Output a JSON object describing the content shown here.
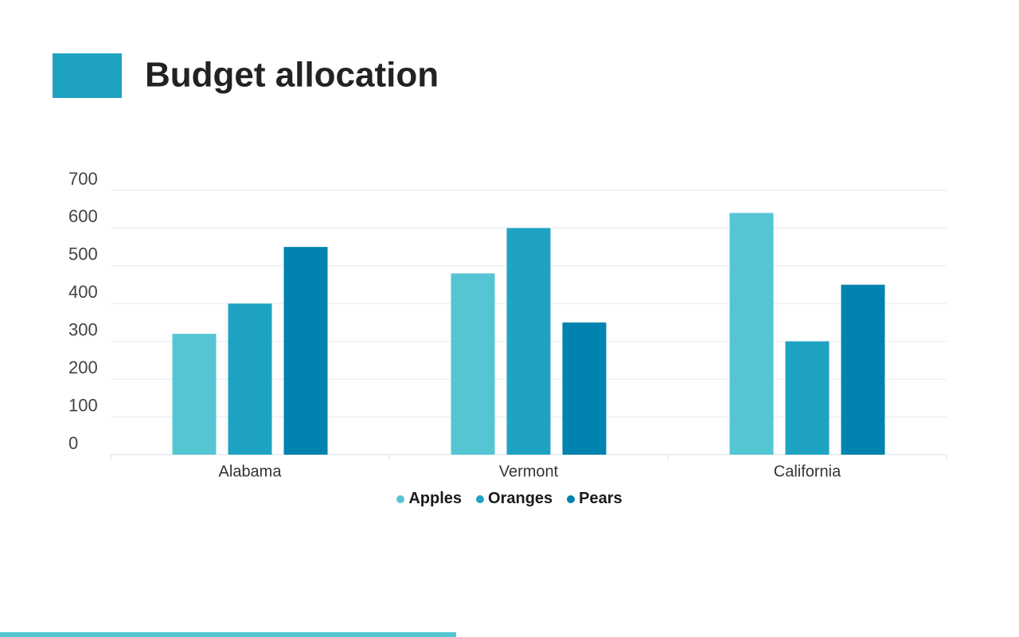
{
  "chart_data": {
    "type": "bar",
    "title": "Budget allocation",
    "categories": [
      "Alabama",
      "Vermont",
      "California"
    ],
    "series": [
      {
        "name": "Apples",
        "color": "#56c5d3",
        "values": [
          320,
          480,
          640
        ]
      },
      {
        "name": "Oranges",
        "color": "#1fa3c2",
        "values": [
          400,
          600,
          300
        ]
      },
      {
        "name": "Pears",
        "color": "#0083ae",
        "values": [
          550,
          350,
          450
        ]
      }
    ],
    "ylim": [
      0,
      700
    ],
    "yticks": [
      0,
      100,
      200,
      300,
      400,
      500,
      600,
      700
    ],
    "grid": true,
    "legend": "bottom"
  }
}
